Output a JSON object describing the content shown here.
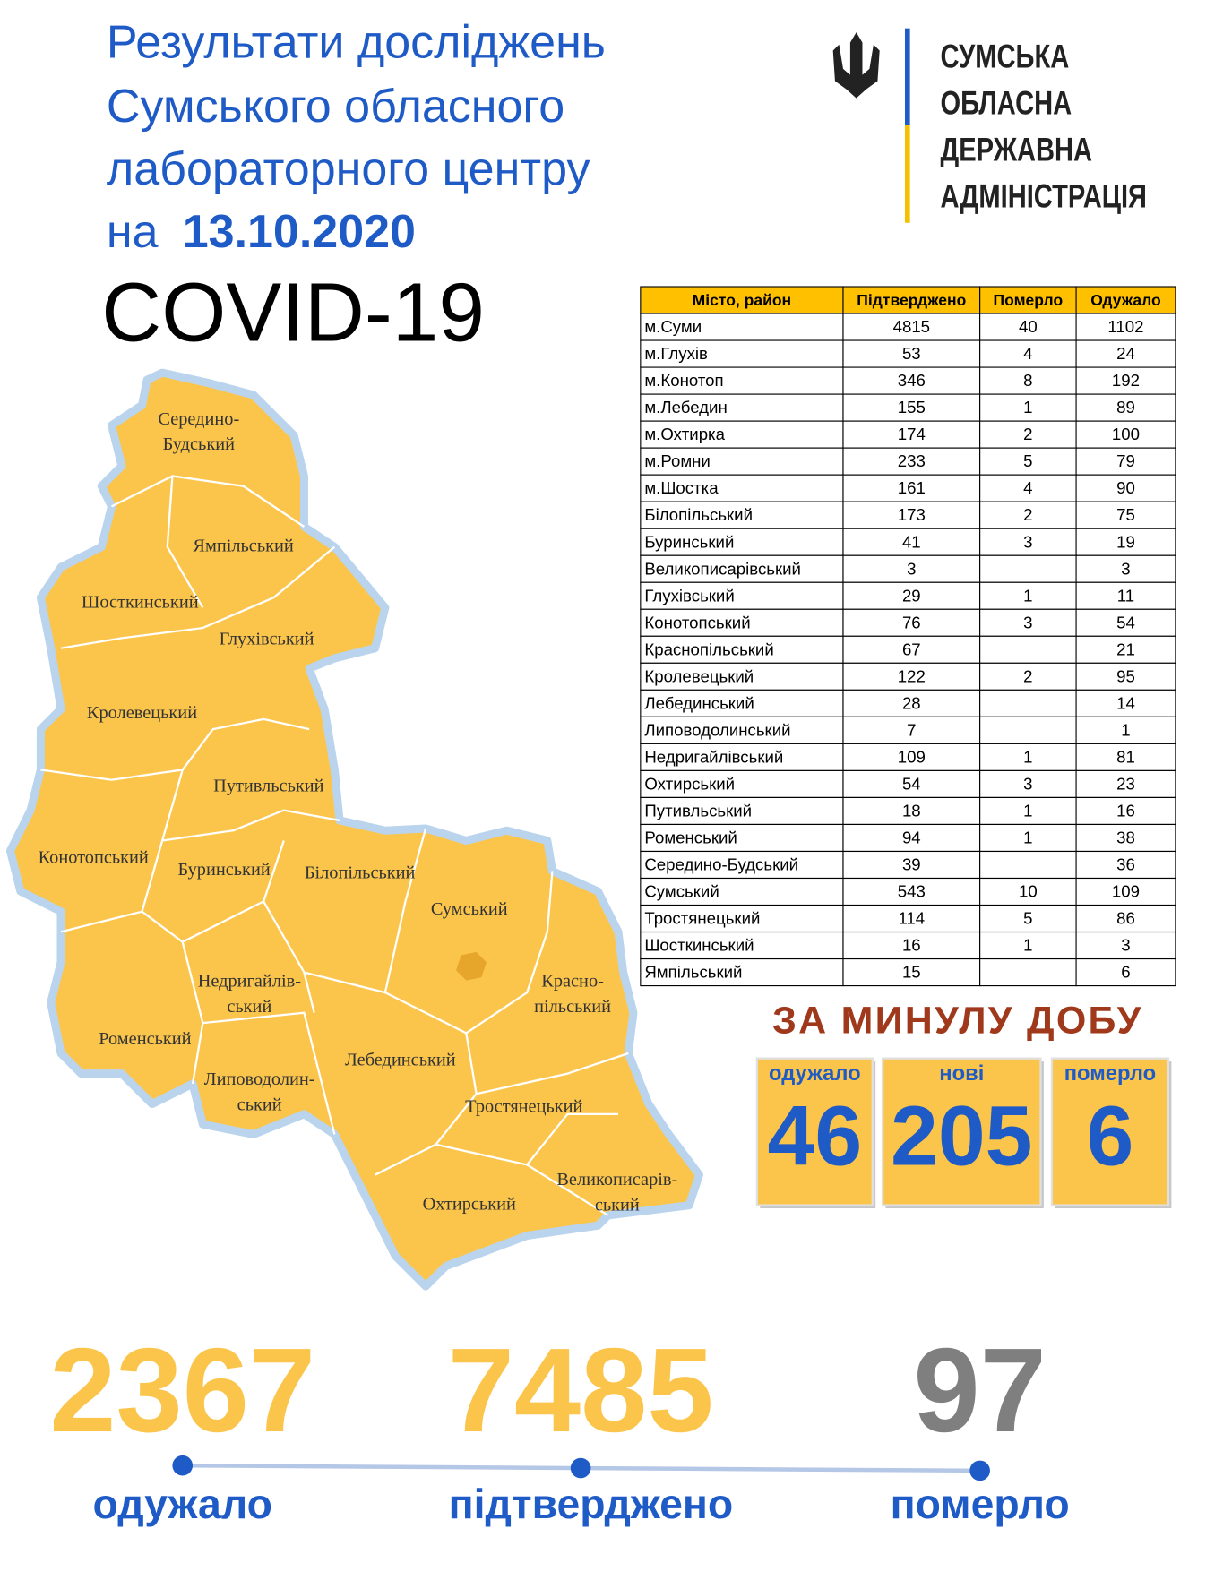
{
  "header": {
    "title_lines": [
      "Результати досліджень",
      "Сумського обласного",
      "лабораторного центру"
    ],
    "date_prefix": "на",
    "date": "13.10.2020",
    "headline": "COVID-19"
  },
  "logo": {
    "lines": [
      "СУМСЬКА",
      "ОБЛАСНА",
      "ДЕРЖАВНА",
      "АДМІНІСТРАЦІЯ"
    ]
  },
  "table": {
    "columns": [
      "Місто, район",
      "Підтверджено",
      "Померло",
      "Одужало"
    ],
    "rows": [
      [
        "м.Суми",
        4815,
        40,
        1102
      ],
      [
        "м.Глухів",
        53,
        4,
        24
      ],
      [
        "м.Конотоп",
        346,
        8,
        192
      ],
      [
        "м.Лебедин",
        155,
        1,
        89
      ],
      [
        "м.Охтирка",
        174,
        2,
        100
      ],
      [
        "м.Ромни",
        233,
        5,
        79
      ],
      [
        "м.Шостка",
        161,
        4,
        90
      ],
      [
        "Білопільський",
        173,
        2,
        75
      ],
      [
        "Буринський",
        41,
        3,
        19
      ],
      [
        "Великописарівський",
        3,
        null,
        3
      ],
      [
        "Глухівський",
        29,
        1,
        11
      ],
      [
        "Конотопський",
        76,
        3,
        54
      ],
      [
        "Краснопільський",
        67,
        null,
        21
      ],
      [
        "Кролевецький",
        122,
        2,
        95
      ],
      [
        "Лебединський",
        28,
        null,
        14
      ],
      [
        "Липоводолинський",
        7,
        null,
        1
      ],
      [
        "Недригайлівський",
        109,
        1,
        81
      ],
      [
        "Охтирський",
        54,
        3,
        23
      ],
      [
        "Путивльський",
        18,
        1,
        16
      ],
      [
        "Роменський",
        94,
        1,
        38
      ],
      [
        "Середино-Будський",
        39,
        null,
        36
      ],
      [
        "Сумський",
        543,
        10,
        109
      ],
      [
        "Тростянецький",
        114,
        5,
        86
      ],
      [
        "Шосткинський",
        16,
        1,
        3
      ],
      [
        "Ямпільський",
        15,
        null,
        6
      ]
    ]
  },
  "map": {
    "districts": [
      [
        "Середино-",
        "Будський"
      ],
      [
        "Ямпільський"
      ],
      [
        "Шосткинський"
      ],
      [
        "Глухівський"
      ],
      [
        "Кролевецький"
      ],
      [
        "Путивльський"
      ],
      [
        "Конотопський"
      ],
      [
        "Буринський"
      ],
      [
        "Білопільський"
      ],
      [
        "Сумський"
      ],
      [
        "Недригайлів-",
        "ський"
      ],
      [
        "Красно-",
        "пільський"
      ],
      [
        "Роменський"
      ],
      [
        "Лебединський"
      ],
      [
        "Липоводолин-",
        "ський"
      ],
      [
        "Тростянецький"
      ],
      [
        "Великописарів-",
        "ський"
      ],
      [
        "Охтирський"
      ]
    ]
  },
  "daily": {
    "title": "ЗА МИНУЛУ ДОБУ",
    "items": [
      {
        "label": "одужало",
        "value": 46
      },
      {
        "label": "нові",
        "value": 205
      },
      {
        "label": "померло",
        "value": 6
      }
    ]
  },
  "totals": [
    {
      "value": 2367,
      "label": "одужало",
      "color": "#fbc54c"
    },
    {
      "value": 7485,
      "label": "підтверджено",
      "color": "#fbc54c"
    },
    {
      "value": 97,
      "label": "померло",
      "color": "#7f7f7f"
    }
  ]
}
